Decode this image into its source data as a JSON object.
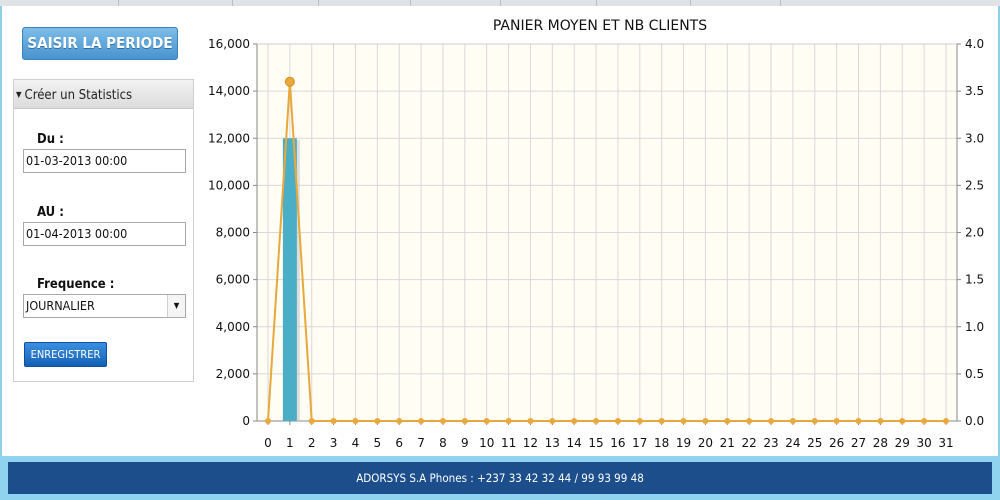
{
  "sidebar": {
    "period_button": "SAISIR LA PERIODE",
    "panel_title": "Créer un Statistics",
    "from_label": "Du :",
    "from_value": "01-03-2013 00:00",
    "to_label": "AU :",
    "to_value": "01-04-2013 00:00",
    "frequency_label": "Frequence :",
    "frequency_value": "JOURNALIER",
    "save_button": "ENREGISTRER"
  },
  "footer": {
    "text": "ADORSYS S.A Phones : +237 33 42 32 44 / 99 93 99 48"
  },
  "chart_data": {
    "type": "bar+line",
    "title": "PANIER MOYEN ET NB CLIENTS",
    "x": [
      0,
      1,
      2,
      3,
      4,
      5,
      6,
      7,
      8,
      9,
      10,
      11,
      12,
      13,
      14,
      15,
      16,
      17,
      18,
      19,
      20,
      21,
      22,
      23,
      24,
      25,
      26,
      27,
      28,
      29,
      30,
      31
    ],
    "y_left_lim": [
      0,
      16000
    ],
    "y_left_ticks": [
      "0",
      "2,000",
      "4,000",
      "6,000",
      "8,000",
      "10,000",
      "12,000",
      "14,000",
      "16,000"
    ],
    "y_right_lim": [
      0,
      4.0
    ],
    "y_right_ticks": [
      "0.0",
      "0.5",
      "1.0",
      "1.5",
      "2.0",
      "2.5",
      "3.0",
      "3.5",
      "4.0"
    ],
    "series": [
      {
        "type": "bar",
        "axis": "left",
        "color": "#4aaec6",
        "values": [
          0,
          12000,
          0,
          0,
          0,
          0,
          0,
          0,
          0,
          0,
          0,
          0,
          0,
          0,
          0,
          0,
          0,
          0,
          0,
          0,
          0,
          0,
          0,
          0,
          0,
          0,
          0,
          0,
          0,
          0,
          0,
          0
        ]
      },
      {
        "type": "line",
        "axis": "right",
        "color": "#e8a83c",
        "values": [
          0,
          3.6,
          0,
          0,
          0,
          0,
          0,
          0,
          0,
          0,
          0,
          0,
          0,
          0,
          0,
          0,
          0,
          0,
          0,
          0,
          0,
          0,
          0,
          0,
          0,
          0,
          0,
          0,
          0,
          0,
          0,
          0
        ]
      }
    ],
    "grid": true
  }
}
